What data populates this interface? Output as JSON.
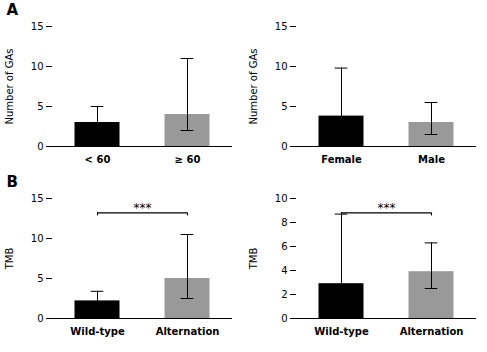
{
  "chart_data": [
    {
      "type": "bar",
      "categories": [
        "< 60",
        "≥ 60"
      ],
      "values": [
        3.0,
        4.0
      ],
      "error_plus": [
        2.0,
        7.0
      ],
      "error_minus": [
        1.5,
        2.0
      ],
      "colors": [
        "#000000",
        "#999999"
      ],
      "ylabel": "Number of GAs",
      "ylim": [
        0,
        15
      ],
      "yticks": [
        0,
        5,
        10,
        15
      ],
      "panel_label": "A"
    },
    {
      "type": "bar",
      "categories": [
        "Female",
        "Male"
      ],
      "values": [
        3.8,
        3.0
      ],
      "error_plus": [
        6.0,
        2.5
      ],
      "error_minus": [
        2.0,
        1.5
      ],
      "colors": [
        "#000000",
        "#999999"
      ],
      "ylabel": "Number of GAs",
      "ylim": [
        0,
        15
      ],
      "yticks": [
        0,
        5,
        10,
        15
      ]
    },
    {
      "type": "bar",
      "categories": [
        "Wild-type",
        "Alternation"
      ],
      "values": [
        2.2,
        5.0
      ],
      "error_plus": [
        1.2,
        5.5
      ],
      "error_minus": [
        0.8,
        2.5
      ],
      "colors": [
        "#000000",
        "#999999"
      ],
      "ylabel": "TMB",
      "ylim": [
        0,
        15
      ],
      "yticks": [
        0,
        5,
        10,
        15
      ],
      "significance": "***",
      "significance_y": 13.2,
      "panel_label": "B"
    },
    {
      "type": "bar",
      "categories": [
        "Wild-type",
        "Alternation"
      ],
      "values": [
        2.9,
        3.9
      ],
      "error_plus": [
        5.8,
        2.4
      ],
      "error_minus": [
        1.8,
        1.4
      ],
      "colors": [
        "#000000",
        "#999999"
      ],
      "ylabel": "TMB",
      "ylim": [
        0,
        10
      ],
      "yticks": [
        0,
        2,
        4,
        6,
        8,
        10
      ],
      "significance": "***",
      "significance_y": 8.8
    }
  ]
}
